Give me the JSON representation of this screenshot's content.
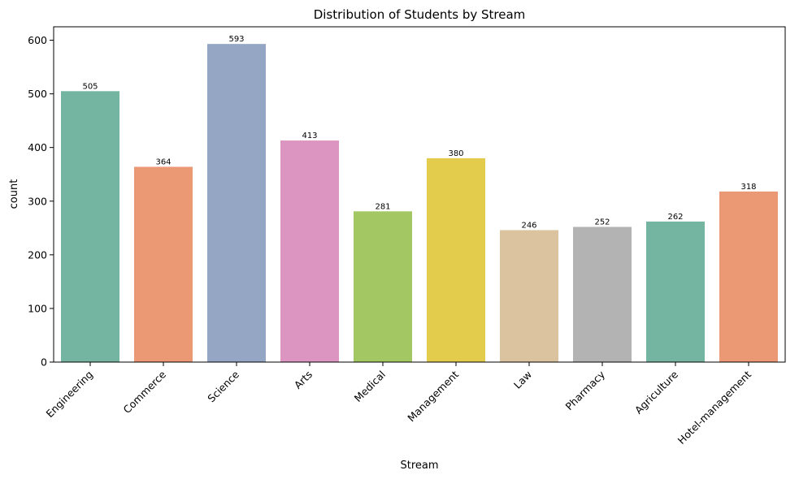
{
  "chart_data": {
    "type": "bar",
    "title": "Distribution of Students by Stream",
    "xlabel": "Stream",
    "ylabel": "count",
    "categories": [
      "Engineering",
      "Commerce",
      "Science",
      "Arts",
      "Medical",
      "Management",
      "Law",
      "Pharmacy",
      "Agriculture",
      "Hotel-management"
    ],
    "values": [
      505,
      364,
      593,
      413,
      281,
      380,
      246,
      252,
      262,
      318
    ],
    "colors": [
      "#73b5a0",
      "#eb9875",
      "#94a6c4",
      "#dc94c0",
      "#a3c763",
      "#e3cb4b",
      "#dbc39f",
      "#b3b3b3",
      "#73b5a0",
      "#eb9875"
    ],
    "ylim": [
      0,
      625
    ],
    "yticks": [
      0,
      100,
      200,
      300,
      400,
      500,
      600
    ],
    "grid": false,
    "legend": "none"
  }
}
